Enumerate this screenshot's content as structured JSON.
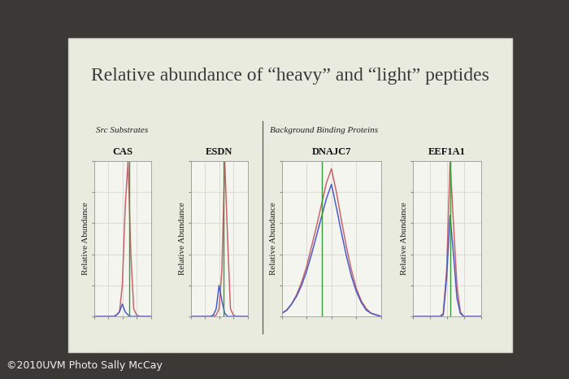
{
  "title": "Relative abundance of “heavy” and “light” peptides",
  "sections": [
    "Src Substrates",
    "Background Binding Proteins"
  ],
  "credit": "©2010UVM Photo Sally McCay",
  "chart_data": [
    {
      "type": "line",
      "title": "CAS",
      "y_label": "Relative Abundance",
      "x": [
        0,
        1,
        2,
        3,
        4,
        5,
        6,
        7,
        8,
        9,
        10,
        11,
        12,
        13,
        14,
        15,
        16,
        17,
        18,
        19,
        20
      ],
      "series": [
        {
          "color": "#c9646e",
          "values": [
            0,
            0,
            0,
            0,
            0,
            0,
            0,
            0,
            1,
            3,
            20,
            70,
            100,
            40,
            5,
            1,
            0,
            0,
            0,
            0,
            0
          ]
        },
        {
          "color": "#4a5cc8",
          "values": [
            0,
            0,
            0,
            0,
            0,
            0,
            0,
            0,
            1,
            3,
            8,
            3,
            1,
            0,
            0,
            0,
            0,
            0,
            0,
            0,
            0
          ]
        }
      ],
      "vline": {
        "x": 12.5,
        "color": "#3a9a3a"
      },
      "xlim": [
        0,
        20
      ],
      "ylim": [
        0,
        100
      ],
      "xticks": [
        0,
        5,
        10,
        15,
        20
      ],
      "yticks": [
        0,
        20,
        40,
        60,
        80,
        100
      ],
      "grid": true,
      "tick_labels": false
    },
    {
      "type": "line",
      "title": "ESDN",
      "y_label": "Relative Abundance",
      "x": [
        0,
        1,
        2,
        3,
        4,
        5,
        6,
        7,
        8,
        9,
        10,
        11,
        12,
        13,
        14,
        15,
        16,
        17,
        18,
        19,
        20
      ],
      "series": [
        {
          "color": "#c9646e",
          "values": [
            0,
            0,
            0,
            0,
            0,
            0,
            0,
            0,
            0,
            1,
            5,
            30,
            100,
            50,
            5,
            1,
            0,
            0,
            0,
            0,
            0
          ]
        },
        {
          "color": "#4a5cc8",
          "values": [
            0,
            0,
            0,
            0,
            0,
            0,
            0,
            0,
            1,
            5,
            20,
            10,
            2,
            0,
            0,
            0,
            0,
            0,
            0,
            0,
            0
          ]
        }
      ],
      "vline": {
        "x": 11.5,
        "color": "#3a9a3a"
      },
      "xlim": [
        0,
        20
      ],
      "ylim": [
        0,
        100
      ],
      "xticks": [
        0,
        5,
        10,
        15,
        20
      ],
      "yticks": [
        0,
        20,
        40,
        60,
        80,
        100
      ],
      "grid": true,
      "tick_labels": false
    },
    {
      "type": "line",
      "title": "DNAJC7",
      "y_label": "Relative Abundance",
      "x": [
        0,
        1,
        2,
        3,
        4,
        5,
        6,
        7,
        8,
        9,
        10,
        11,
        12,
        13,
        14,
        15,
        16,
        17,
        18,
        19,
        20
      ],
      "series": [
        {
          "color": "#c9646e",
          "values": [
            2,
            4,
            8,
            14,
            22,
            32,
            45,
            58,
            72,
            86,
            95,
            80,
            62,
            45,
            30,
            18,
            10,
            5,
            2,
            1,
            0
          ]
        },
        {
          "color": "#4a5cc8",
          "values": [
            2,
            4,
            8,
            13,
            20,
            29,
            40,
            52,
            64,
            76,
            85,
            70,
            54,
            39,
            26,
            16,
            9,
            4,
            2,
            1,
            0
          ]
        }
      ],
      "vline": {
        "x": 8,
        "color": "#3a9a3a"
      },
      "xlim": [
        0,
        20
      ],
      "ylim": [
        0,
        100
      ],
      "xticks": [
        0,
        5,
        10,
        15,
        20
      ],
      "yticks": [
        0,
        20,
        40,
        60,
        80,
        100
      ],
      "grid": true,
      "tick_labels": false
    },
    {
      "type": "line",
      "title": "EEF1A1",
      "y_label": "Relative Abundance",
      "x": [
        0,
        1,
        2,
        3,
        4,
        5,
        6,
        7,
        8,
        9,
        10,
        11,
        12,
        13,
        14,
        15,
        16,
        17,
        18,
        19,
        20
      ],
      "series": [
        {
          "color": "#c9646e",
          "values": [
            0,
            0,
            0,
            0,
            0,
            0,
            0,
            0,
            0,
            2,
            30,
            100,
            60,
            20,
            3,
            0,
            0,
            0,
            0,
            0,
            0
          ]
        },
        {
          "color": "#4a5cc8",
          "values": [
            0,
            0,
            0,
            0,
            0,
            0,
            0,
            0,
            0,
            1,
            25,
            65,
            40,
            12,
            2,
            0,
            0,
            0,
            0,
            0,
            0
          ]
        }
      ],
      "vline": {
        "x": 11,
        "color": "#3a9a3a"
      },
      "xlim": [
        0,
        20
      ],
      "ylim": [
        0,
        100
      ],
      "xticks": [
        0,
        5,
        10,
        15,
        20
      ],
      "yticks": [
        0,
        20,
        40,
        60,
        80,
        100
      ],
      "grid": true,
      "tick_labels": false
    }
  ]
}
